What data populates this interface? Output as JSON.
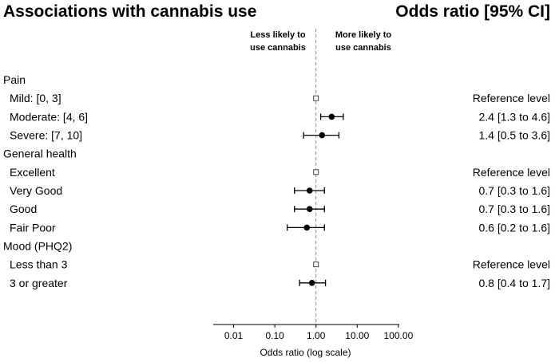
{
  "chart_data": {
    "type": "forest",
    "title": "Associations with cannabis use",
    "right_title": "Odds ratio [95% CI]",
    "left_direction_label": [
      "Less likely to",
      "use cannabis"
    ],
    "right_direction_label": [
      "More likely to",
      "use cannabis"
    ],
    "xlabel": "Odds ratio (log scale)",
    "x_scale": "log",
    "xlim": [
      0.003,
      100
    ],
    "x_ticks": [
      0.01,
      0.1,
      1,
      10,
      100
    ],
    "x_tick_labels": [
      "0.01",
      "0.10",
      "1.00",
      "10.00",
      "100.00"
    ],
    "reference_line": 1,
    "groups": [
      {
        "name": "Pain",
        "rows": [
          {
            "label": "Mild: [0, 3]",
            "or": 1,
            "ci": null,
            "reference": true,
            "text": "Reference level"
          },
          {
            "label": "Moderate: [4, 6]",
            "or": 2.4,
            "ci": [
              1.3,
              4.6
            ],
            "reference": false,
            "text": "2.4 [1.3 to 4.6]"
          },
          {
            "label": "Severe: [7, 10]",
            "or": 1.4,
            "ci": [
              0.5,
              3.6
            ],
            "reference": false,
            "text": "1.4 [0.5 to 3.6]"
          }
        ]
      },
      {
        "name": "General health",
        "rows": [
          {
            "label": "Excellent",
            "or": 1,
            "ci": null,
            "reference": true,
            "text": "Reference level"
          },
          {
            "label": "Very Good",
            "or": 0.7,
            "ci": [
              0.3,
              1.6
            ],
            "reference": false,
            "text": "0.7 [0.3 to 1.6]"
          },
          {
            "label": "Good",
            "or": 0.7,
            "ci": [
              0.3,
              1.6
            ],
            "reference": false,
            "text": "0.7 [0.3 to 1.6]"
          },
          {
            "label": "Fair Poor",
            "or": 0.6,
            "ci": [
              0.2,
              1.6
            ],
            "reference": false,
            "text": "0.6 [0.2 to 1.6]"
          }
        ]
      },
      {
        "name": "Mood (PHQ2)",
        "rows": [
          {
            "label": "Less than 3",
            "or": 1,
            "ci": null,
            "reference": true,
            "text": "Reference level"
          },
          {
            "label": "3 or greater",
            "or": 0.8,
            "ci": [
              0.4,
              1.7
            ],
            "reference": false,
            "text": "0.8 [0.4 to 1.7]"
          }
        ]
      }
    ]
  }
}
